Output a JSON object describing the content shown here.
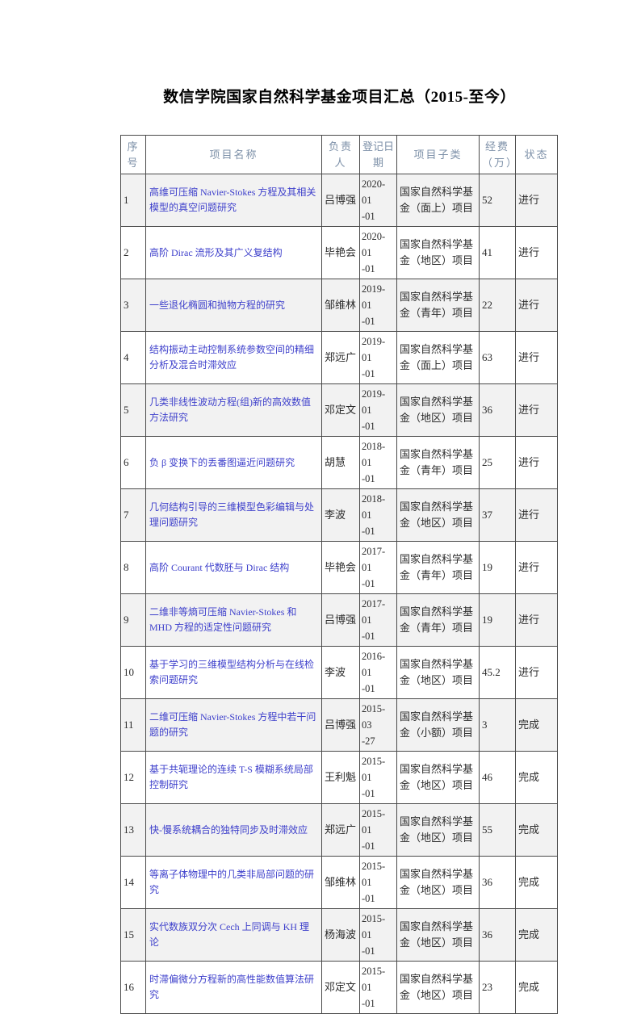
{
  "document": {
    "title": "数信学院国家自然科学基金项目汇总（2015-至今）"
  },
  "table": {
    "columns": [
      "序号",
      "项目名称",
      "负责人",
      "登记日期",
      "项目子类",
      "经费（万）",
      "状态"
    ],
    "rows": [
      {
        "no": "1",
        "name": "高维可压缩 Navier-Stokes 方程及其相关模型的真空问题研究",
        "pi": "吕博强",
        "date": "2020-01-01",
        "subtype": "国家自然科学基金（面上）项目",
        "fund": "52",
        "status": "进行"
      },
      {
        "no": "2",
        "name": "高阶 Dirac 流形及其广义复结构",
        "pi": "毕艳会",
        "date": "2020-01-01",
        "subtype": "国家自然科学基金（地区）项目",
        "fund": "41",
        "status": "进行"
      },
      {
        "no": "3",
        "name": "一些退化椭圆和抛物方程的研究",
        "pi": "邹维林",
        "date": "2019-01-01",
        "subtype": "国家自然科学基金（青年）项目",
        "fund": "22",
        "status": "进行"
      },
      {
        "no": "4",
        "name": "结构振动主动控制系统参数空间的精细分析及混合时滞效应",
        "pi": "郑远广",
        "date": "2019-01-01",
        "subtype": "国家自然科学基金（面上）项目",
        "fund": "63",
        "status": "进行"
      },
      {
        "no": "5",
        "name": "几类非线性波动方程(组)新的高效数值方法研究",
        "pi": "邓定文",
        "date": "2019-01-01",
        "subtype": "国家自然科学基金（地区）项目",
        "fund": "36",
        "status": "进行"
      },
      {
        "no": "6",
        "name": "负 β 变换下的丢番图逼近问题研究",
        "pi": "胡慧",
        "date": "2018-01-01",
        "subtype": "国家自然科学基金（青年）项目",
        "fund": "25",
        "status": "进行"
      },
      {
        "no": "7",
        "name": "几何结构引导的三维模型色彩编辑与处理问题研究",
        "pi": "李波",
        "date": "2018-01-01",
        "subtype": "国家自然科学基金（地区）项目",
        "fund": "37",
        "status": "进行"
      },
      {
        "no": "8",
        "name": "高阶 Courant 代数胚与 Dirac 结构",
        "pi": "毕艳会",
        "date": "2017-01-01",
        "subtype": "国家自然科学基金（青年）项目",
        "fund": "19",
        "status": "进行"
      },
      {
        "no": "9",
        "name": "二维非等熵可压缩 Navier-Stokes 和 MHD 方程的适定性问题研究",
        "pi": "吕博强",
        "date": "2017-01-01",
        "subtype": "国家自然科学基金（青年）项目",
        "fund": "19",
        "status": "进行"
      },
      {
        "no": "10",
        "name": "基于学习的三维模型结构分析与在线检索问题研究",
        "pi": "李波",
        "date": "2016-01-01",
        "subtype": "国家自然科学基金（地区）项目",
        "fund": "45.2",
        "status": "进行"
      },
      {
        "no": "11",
        "name": "二维可压缩 Navier-Stokes 方程中若干问题的研究",
        "pi": "吕博强",
        "date": "2015-03-27",
        "subtype": "国家自然科学基金（小额）项目",
        "fund": "3",
        "status": "完成"
      },
      {
        "no": "12",
        "name": "基于共轭理论的连续 T-S 模糊系统局部控制研究",
        "pi": "王利魁",
        "date": "2015-01-01",
        "subtype": "国家自然科学基金（地区）项目",
        "fund": "46",
        "status": "完成"
      },
      {
        "no": "13",
        "name": "快-慢系统耦合的独特同步及时滞效应",
        "pi": "郑远广",
        "date": "2015-01-01",
        "subtype": "国家自然科学基金（地区）项目",
        "fund": "55",
        "status": "完成"
      },
      {
        "no": "14",
        "name": "等离子体物理中的几类非局部问题的研究",
        "pi": "邹维林",
        "date": "2015-01-01",
        "subtype": "国家自然科学基金（地区）项目",
        "fund": "36",
        "status": "完成"
      },
      {
        "no": "15",
        "name": "实代数族双分次 Cech 上同调与 KH 理论",
        "pi": "杨海波",
        "date": "2015-01-01",
        "subtype": "国家自然科学基金（地区）项目",
        "fund": "36",
        "status": "完成"
      },
      {
        "no": "16",
        "name": "时滞偏微分方程新的高性能数值算法研究",
        "pi": "邓定文",
        "date": "2015-01-01",
        "subtype": "国家自然科学基金（地区）项目",
        "fund": "23",
        "status": "完成"
      }
    ]
  },
  "colors": {
    "header_text": "#7d90a8",
    "link_text": "#3d3fcb",
    "body_text": "#2b2b2b",
    "border": "#4a4a4a",
    "zebra_stripe": "#f2f2f2",
    "page_background": "#ffffff"
  }
}
